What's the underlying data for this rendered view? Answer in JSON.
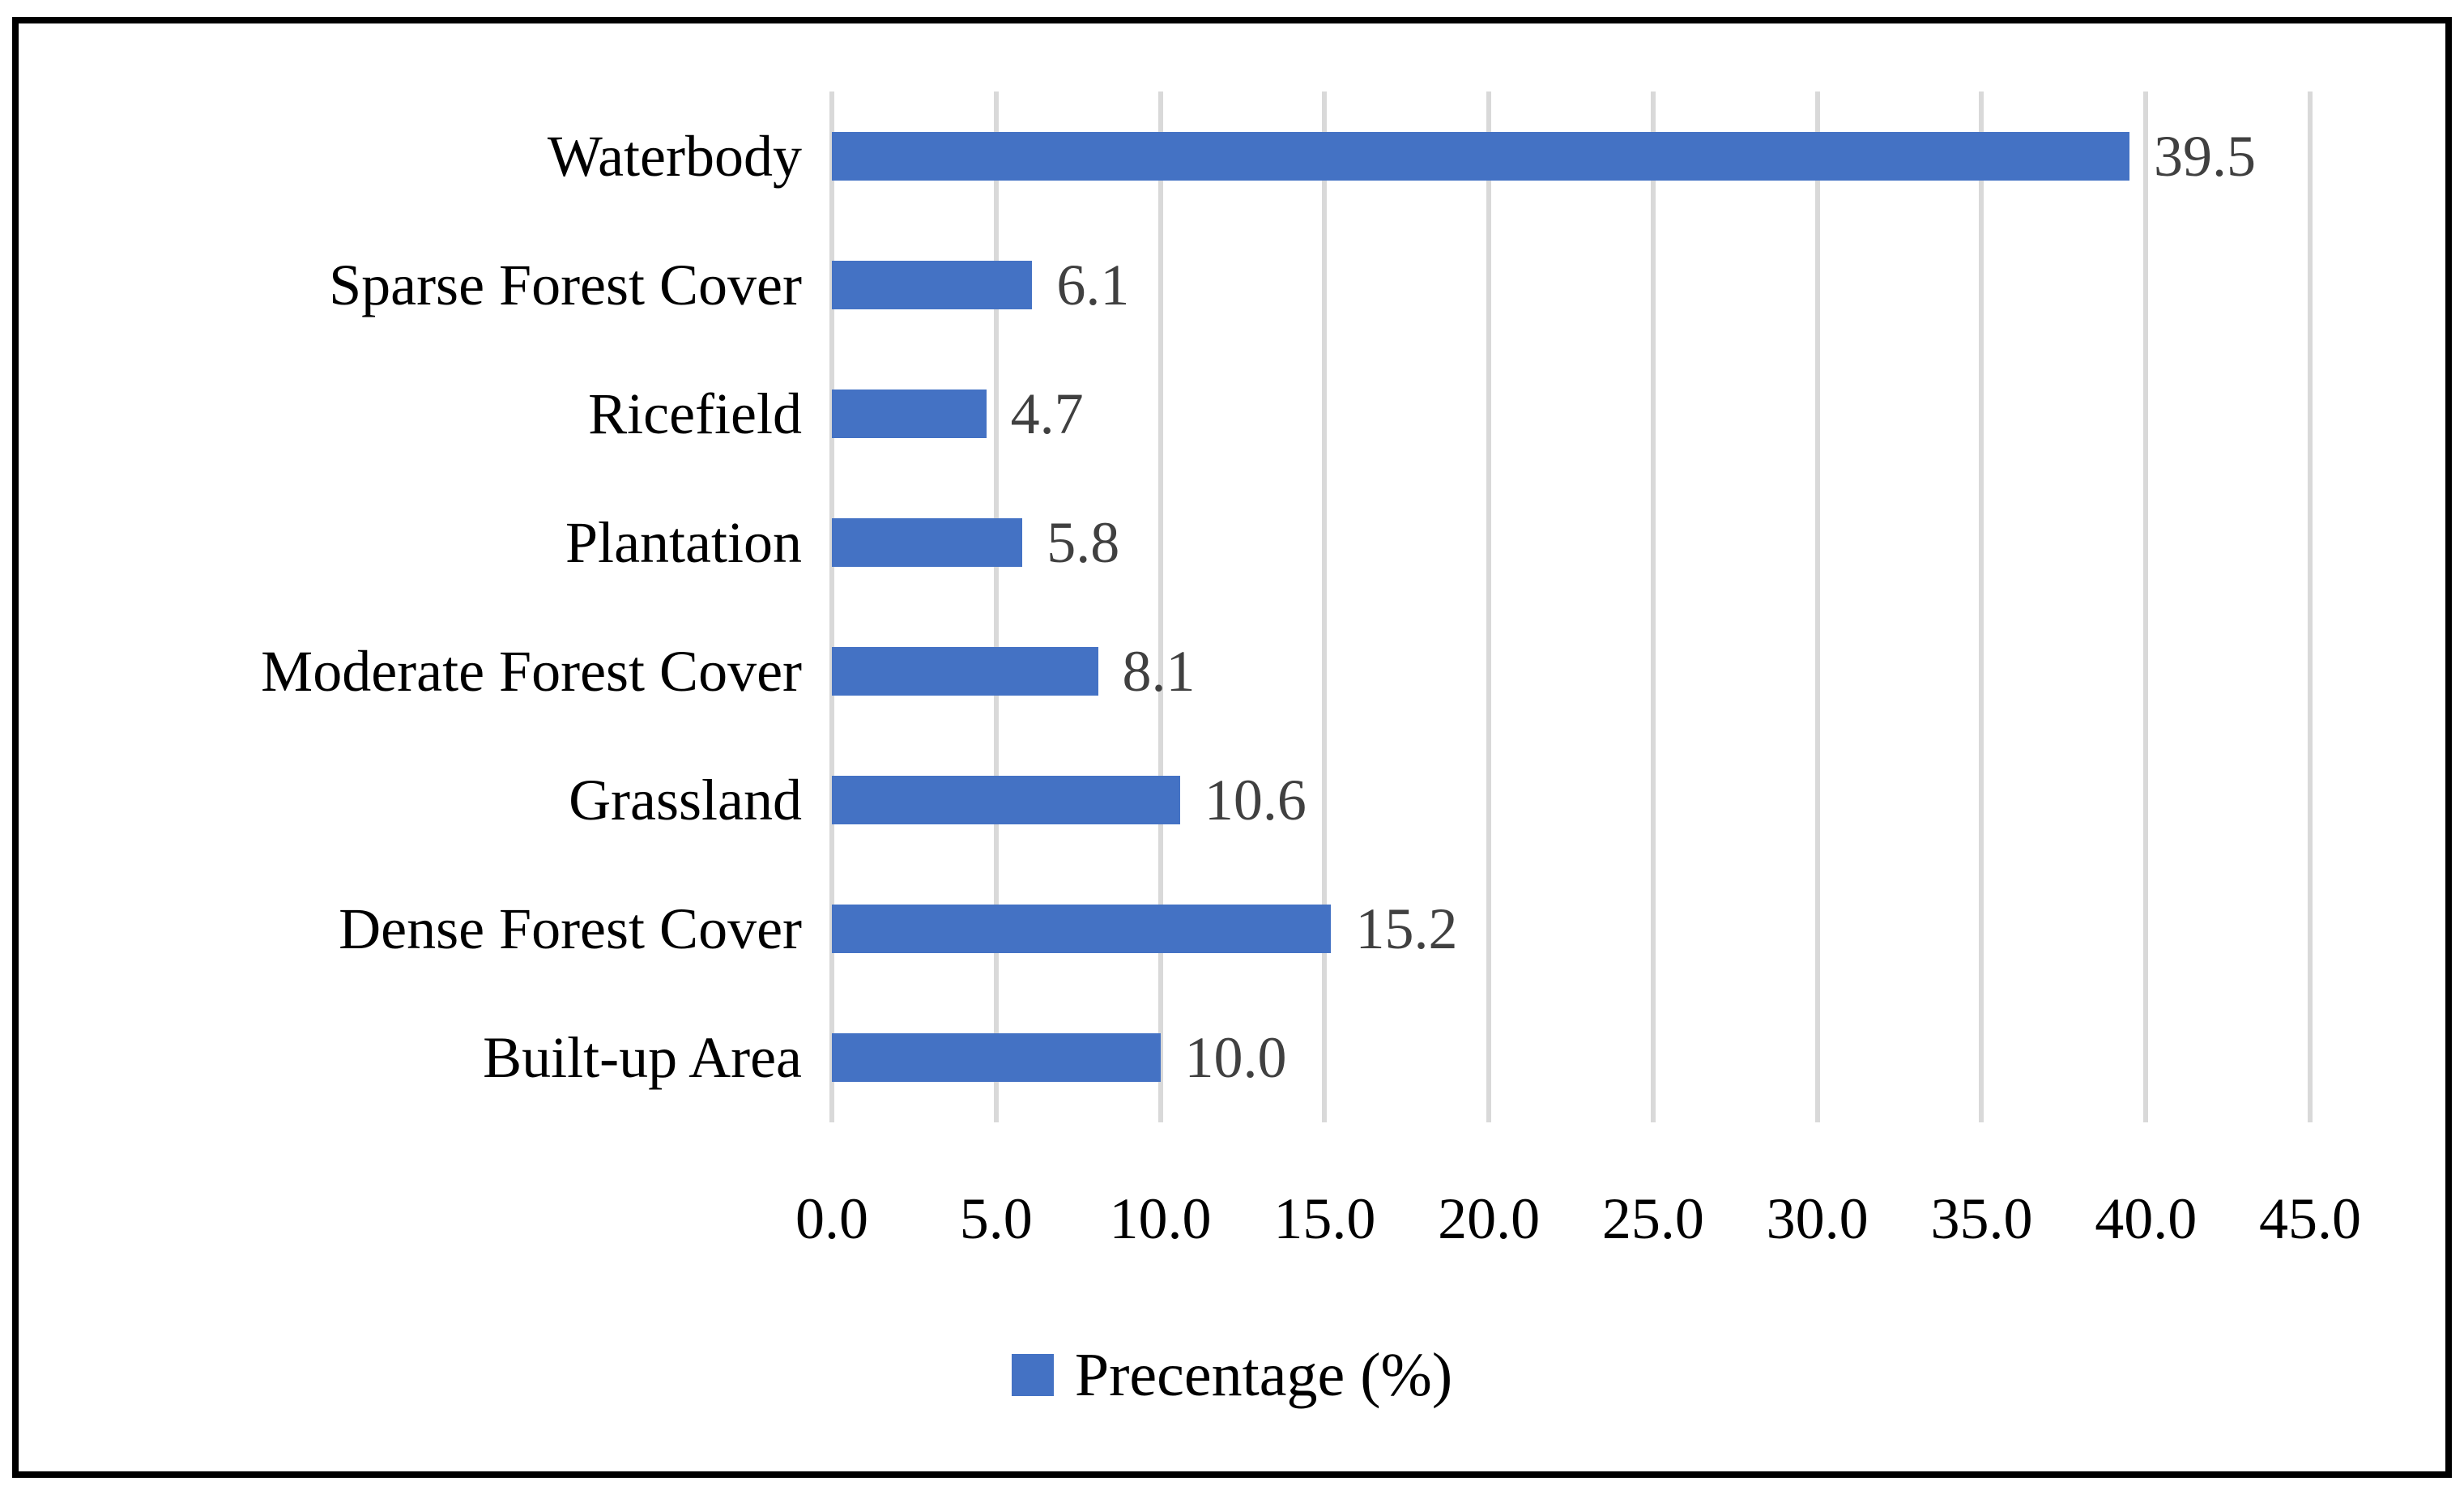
{
  "figure": {
    "background": "#FFFFFF",
    "border_color": "#000000"
  },
  "chart_data": {
    "type": "bar",
    "orientation": "horizontal",
    "title": "",
    "xlabel": "",
    "ylabel": "",
    "categories": [
      "Waterbody",
      "Sparse Forest Cover",
      "Ricefield",
      "Plantation",
      "Moderate Forest Cover",
      "Grassland",
      "Dense Forest Cover",
      "Built-up Area"
    ],
    "values": [
      39.5,
      6.1,
      4.7,
      5.8,
      8.1,
      10.6,
      15.2,
      10.0
    ],
    "data_labels": [
      "39.5",
      "6.1",
      "4.7",
      "5.8",
      "8.1",
      "10.6",
      "15.2",
      "10.0"
    ],
    "xlim": [
      0,
      45
    ],
    "x_ticks": [
      0,
      5,
      10,
      15,
      20,
      25,
      30,
      35,
      40,
      45
    ],
    "x_tick_labels": [
      "0.0",
      "5.0",
      "10.0",
      "15.0",
      "20.0",
      "25.0",
      "30.0",
      "35.0",
      "40.0",
      "45.0"
    ],
    "grid": "vertical-gridlines-only",
    "bar_color": "#4472C4",
    "gridline_color": "#D9D9D9",
    "value_label_color": "#404040",
    "axis_text_color": "#000000",
    "legend": {
      "position": "bottom-center",
      "label": "Precentage (%)",
      "marker_color": "#4472C4"
    }
  }
}
